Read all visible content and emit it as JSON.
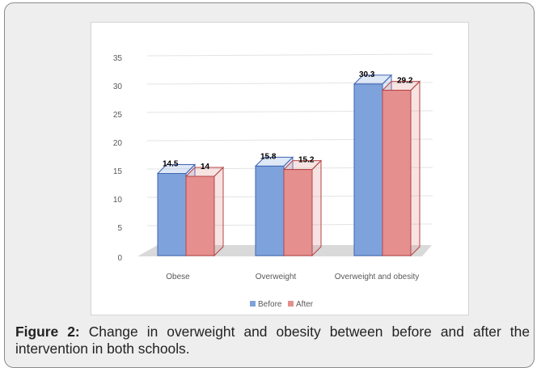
{
  "caption": {
    "label": "Figure 2:",
    "text": "Change in overweight and obesity between before and after the intervention in both schools."
  },
  "chart_data": {
    "type": "bar",
    "style": "3d-clustered-column",
    "categories": [
      "Obese",
      "Overweight",
      "Overweight and obesity"
    ],
    "series": [
      {
        "name": "Before",
        "values": [
          14.5,
          15.8,
          30.3
        ],
        "color": "#7ea3dc",
        "edge": "#3f64b4"
      },
      {
        "name": "After",
        "values": [
          14,
          15.2,
          29.2
        ],
        "color": "#e58f8f",
        "edge": "#b54444"
      }
    ],
    "ylim": [
      0,
      35
    ],
    "yticks": [
      "0",
      "5",
      "10",
      "15",
      "20",
      "25",
      "30",
      "35"
    ],
    "value_labels": [
      "14.5",
      "14",
      "15.8",
      "15.2",
      "30.3",
      "29.2"
    ],
    "grid": true,
    "legend": "bottom",
    "title": "",
    "xlabel": "",
    "ylabel": ""
  }
}
